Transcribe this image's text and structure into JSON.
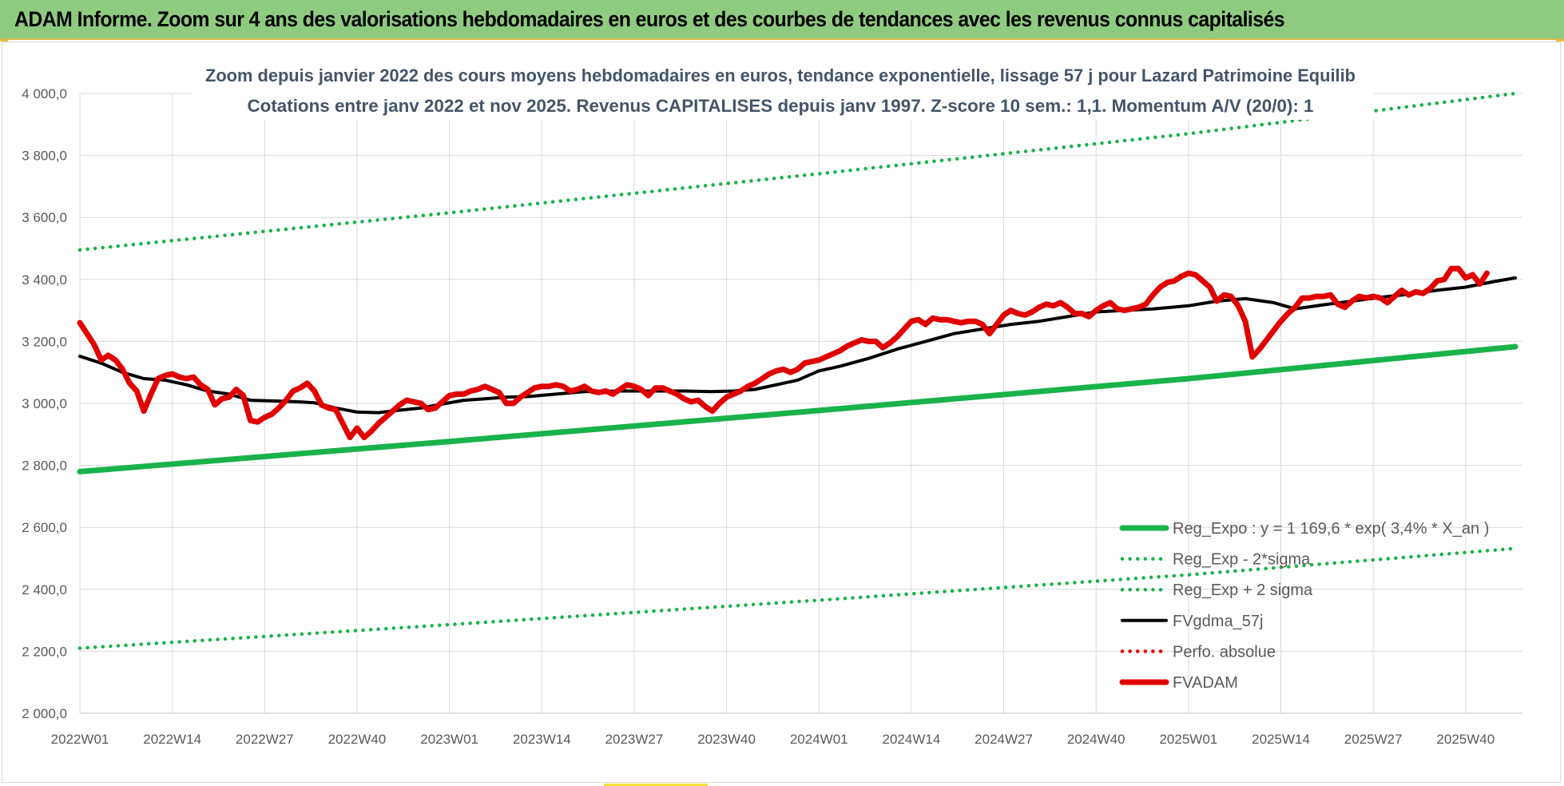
{
  "banner": {
    "title": "ADAM Informe. Zoom sur 4 ans des valorisations hebdomadaires en euros et des courbes de tendances avec les revenus connus capitalisés"
  },
  "colors": {
    "banner_bg": "#8fcb7f",
    "reg_expo": "#19b24b",
    "sigma_bands": "#19b24b",
    "moving_average": "#000000",
    "perfo_absolue": "#e00000",
    "fvadam": "#e00000"
  },
  "chart_data": {
    "type": "line",
    "title": "Zoom depuis janvier 2022 des cours moyens hebdomadaires en euros, tendance exponentielle, lissage 57 j pour Lazard Patrimoine Equilib",
    "subtitle": "Cotations entre janv 2022 et nov 2025. Revenus CAPITALISES depuis janv 1997. Z-score 10 sem.: 1,1. Momentum A/V (20/0): 1",
    "xlabel": "",
    "ylabel": "",
    "grid": true,
    "legend_position": "bottom-right",
    "ylim": [
      2000,
      4000
    ],
    "y_ticks": [
      "2 000,0",
      "2 200,0",
      "2 400,0",
      "2 600,0",
      "2 800,0",
      "3 000,0",
      "3 200,0",
      "3 400,0",
      "3 600,0",
      "3 800,0",
      "4 000,0"
    ],
    "x_ticks": [
      "2022W01",
      "2022W14",
      "2022W27",
      "2022W40",
      "2023W01",
      "2023W14",
      "2023W27",
      "2023W40",
      "2024W01",
      "2024W14",
      "2024W27",
      "2024W40",
      "2025W01",
      "2025W14",
      "2025W27",
      "2025W40"
    ],
    "series": [
      {
        "name": "Reg_Expo : y = 1 169,6 * exp( 3,4% *  X_an )",
        "style": "solid-thick",
        "color": "#19b24b",
        "points": [
          [
            "2022W01",
            2780
          ],
          [
            "2023W01",
            2877
          ],
          [
            "2024W01",
            2977
          ],
          [
            "2025W01",
            3080
          ],
          [
            "2025W47",
            3183
          ]
        ]
      },
      {
        "name": "Reg_Exp - 2*sigma",
        "style": "dotted",
        "color": "#19b24b",
        "points": [
          [
            "2022W01",
            2210
          ],
          [
            "2023W01",
            2286
          ],
          [
            "2024W01",
            2365
          ],
          [
            "2025W01",
            2447
          ],
          [
            "2025W47",
            2532
          ]
        ]
      },
      {
        "name": "Reg_Exp + 2 sigma",
        "style": "dotted",
        "color": "#19b24b",
        "points": [
          [
            "2022W01",
            3495
          ],
          [
            "2023W01",
            3615
          ],
          [
            "2024W01",
            3741
          ],
          [
            "2025W01",
            3870
          ],
          [
            "2025W47",
            4000
          ]
        ]
      },
      {
        "name": "FVgdma_57j",
        "style": "solid",
        "color": "#000000",
        "points": [
          [
            "2022W01",
            3152
          ],
          [
            "2022W04",
            3130
          ],
          [
            "2022W07",
            3100
          ],
          [
            "2022W10",
            3080
          ],
          [
            "2022W13",
            3075
          ],
          [
            "2022W16",
            3060
          ],
          [
            "2022W19",
            3040
          ],
          [
            "2022W22",
            3030
          ],
          [
            "2022W25",
            3010
          ],
          [
            "2022W28",
            3008
          ],
          [
            "2022W31",
            3006
          ],
          [
            "2022W34",
            3002
          ],
          [
            "2022W37",
            2985
          ],
          [
            "2022W40",
            2972
          ],
          [
            "2022W43",
            2970
          ],
          [
            "2022W46",
            2978
          ],
          [
            "2022W49",
            2985
          ],
          [
            "2022W52",
            2998
          ],
          [
            "2023W03",
            3010
          ],
          [
            "2023W06",
            3015
          ],
          [
            "2023W09",
            3020
          ],
          [
            "2023W12",
            3022
          ],
          [
            "2023W16",
            3030
          ],
          [
            "2023W20",
            3038
          ],
          [
            "2023W25",
            3040
          ],
          [
            "2023W30",
            3040
          ],
          [
            "2023W34",
            3040
          ],
          [
            "2023W38",
            3038
          ],
          [
            "2023W41",
            3040
          ],
          [
            "2023W44",
            3045
          ],
          [
            "2023W47",
            3060
          ],
          [
            "2023W50",
            3075
          ],
          [
            "2024W01",
            3105
          ],
          [
            "2024W04",
            3120
          ],
          [
            "2024W08",
            3145
          ],
          [
            "2024W12",
            3175
          ],
          [
            "2024W16",
            3200
          ],
          [
            "2024W20",
            3225
          ],
          [
            "2024W24",
            3240
          ],
          [
            "2024W28",
            3255
          ],
          [
            "2024W32",
            3265
          ],
          [
            "2024W36",
            3280
          ],
          [
            "2024W40",
            3295
          ],
          [
            "2024W44",
            3300
          ],
          [
            "2024W48",
            3305
          ],
          [
            "2025W01",
            3315
          ],
          [
            "2025W05",
            3330
          ],
          [
            "2025W09",
            3338
          ],
          [
            "2025W13",
            3325
          ],
          [
            "2025W16",
            3305
          ],
          [
            "2025W20",
            3318
          ],
          [
            "2025W24",
            3330
          ],
          [
            "2025W28",
            3342
          ],
          [
            "2025W32",
            3352
          ],
          [
            "2025W36",
            3365
          ],
          [
            "2025W40",
            3375
          ],
          [
            "2025W44",
            3393
          ],
          [
            "2025W47",
            3405
          ]
        ]
      },
      {
        "name": "Perfo. absolue",
        "style": "dotted",
        "color": "#e00000",
        "points": []
      },
      {
        "name": "FVADAM",
        "style": "solid-thick",
        "color": "#e00000",
        "points": [
          [
            "2022W01",
            3260
          ],
          [
            "2022W02",
            3225
          ],
          [
            "2022W03",
            3190
          ],
          [
            "2022W04",
            3140
          ],
          [
            "2022W05",
            3155
          ],
          [
            "2022W06",
            3140
          ],
          [
            "2022W07",
            3110
          ],
          [
            "2022W08",
            3065
          ],
          [
            "2022W09",
            3040
          ],
          [
            "2022W10",
            2975
          ],
          [
            "2022W11",
            3030
          ],
          [
            "2022W12",
            3080
          ],
          [
            "2022W13",
            3090
          ],
          [
            "2022W14",
            3095
          ],
          [
            "2022W15",
            3085
          ],
          [
            "2022W16",
            3080
          ],
          [
            "2022W17",
            3085
          ],
          [
            "2022W18",
            3060
          ],
          [
            "2022W19",
            3045
          ],
          [
            "2022W20",
            2995
          ],
          [
            "2022W21",
            3015
          ],
          [
            "2022W22",
            3020
          ],
          [
            "2022W23",
            3045
          ],
          [
            "2022W24",
            3025
          ],
          [
            "2022W25",
            2945
          ],
          [
            "2022W26",
            2940
          ],
          [
            "2022W27",
            2955
          ],
          [
            "2022W28",
            2965
          ],
          [
            "2022W29",
            2985
          ],
          [
            "2022W30",
            3010
          ],
          [
            "2022W31",
            3040
          ],
          [
            "2022W32",
            3050
          ],
          [
            "2022W33",
            3065
          ],
          [
            "2022W34",
            3040
          ],
          [
            "2022W35",
            2995
          ],
          [
            "2022W36",
            2985
          ],
          [
            "2022W37",
            2980
          ],
          [
            "2022W38",
            2935
          ],
          [
            "2022W39",
            2890
          ],
          [
            "2022W40",
            2920
          ],
          [
            "2022W41",
            2890
          ],
          [
            "2022W42",
            2910
          ],
          [
            "2022W43",
            2935
          ],
          [
            "2022W44",
            2955
          ],
          [
            "2022W45",
            2975
          ],
          [
            "2022W46",
            2995
          ],
          [
            "2022W47",
            3010
          ],
          [
            "2022W48",
            3005
          ],
          [
            "2022W49",
            3000
          ],
          [
            "2022W50",
            2980
          ],
          [
            "2022W51",
            2985
          ],
          [
            "2022W52",
            3005
          ],
          [
            "2023W01",
            3025
          ],
          [
            "2023W02",
            3030
          ],
          [
            "2023W03",
            3030
          ],
          [
            "2023W04",
            3040
          ],
          [
            "2023W05",
            3045
          ],
          [
            "2023W06",
            3055
          ],
          [
            "2023W07",
            3045
          ],
          [
            "2023W08",
            3035
          ],
          [
            "2023W09",
            3000
          ],
          [
            "2023W10",
            3000
          ],
          [
            "2023W11",
            3020
          ],
          [
            "2023W12",
            3035
          ],
          [
            "2023W13",
            3050
          ],
          [
            "2023W14",
            3055
          ],
          [
            "2023W15",
            3055
          ],
          [
            "2023W16",
            3060
          ],
          [
            "2023W17",
            3055
          ],
          [
            "2023W18",
            3040
          ],
          [
            "2023W19",
            3045
          ],
          [
            "2023W20",
            3055
          ],
          [
            "2023W21",
            3040
          ],
          [
            "2023W22",
            3035
          ],
          [
            "2023W23",
            3040
          ],
          [
            "2023W24",
            3030
          ],
          [
            "2023W25",
            3045
          ],
          [
            "2023W26",
            3060
          ],
          [
            "2023W27",
            3055
          ],
          [
            "2023W28",
            3045
          ],
          [
            "2023W29",
            3025
          ],
          [
            "2023W30",
            3050
          ],
          [
            "2023W31",
            3050
          ],
          [
            "2023W32",
            3040
          ],
          [
            "2023W33",
            3030
          ],
          [
            "2023W34",
            3015
          ],
          [
            "2023W35",
            3005
          ],
          [
            "2023W36",
            3010
          ],
          [
            "2023W37",
            2990
          ],
          [
            "2023W38",
            2975
          ],
          [
            "2023W39",
            3000
          ],
          [
            "2023W40",
            3020
          ],
          [
            "2023W41",
            3030
          ],
          [
            "2023W42",
            3040
          ],
          [
            "2023W43",
            3055
          ],
          [
            "2023W44",
            3065
          ],
          [
            "2023W45",
            3080
          ],
          [
            "2023W46",
            3095
          ],
          [
            "2023W47",
            3105
          ],
          [
            "2023W48",
            3110
          ],
          [
            "2023W49",
            3100
          ],
          [
            "2023W50",
            3110
          ],
          [
            "2023W51",
            3130
          ],
          [
            "2023W52",
            3135
          ],
          [
            "2024W01",
            3140
          ],
          [
            "2024W02",
            3150
          ],
          [
            "2024W03",
            3160
          ],
          [
            "2024W04",
            3170
          ],
          [
            "2024W05",
            3185
          ],
          [
            "2024W06",
            3195
          ],
          [
            "2024W07",
            3205
          ],
          [
            "2024W08",
            3200
          ],
          [
            "2024W09",
            3200
          ],
          [
            "2024W10",
            3180
          ],
          [
            "2024W11",
            3195
          ],
          [
            "2024W12",
            3215
          ],
          [
            "2024W13",
            3240
          ],
          [
            "2024W14",
            3265
          ],
          [
            "2024W15",
            3270
          ],
          [
            "2024W16",
            3255
          ],
          [
            "2024W17",
            3275
          ],
          [
            "2024W18",
            3270
          ],
          [
            "2024W19",
            3270
          ],
          [
            "2024W20",
            3265
          ],
          [
            "2024W21",
            3260
          ],
          [
            "2024W22",
            3265
          ],
          [
            "2024W23",
            3265
          ],
          [
            "2024W24",
            3255
          ],
          [
            "2024W25",
            3225
          ],
          [
            "2024W26",
            3255
          ],
          [
            "2024W27",
            3285
          ],
          [
            "2024W28",
            3300
          ],
          [
            "2024W29",
            3290
          ],
          [
            "2024W30",
            3285
          ],
          [
            "2024W31",
            3295
          ],
          [
            "2024W32",
            3310
          ],
          [
            "2024W33",
            3320
          ],
          [
            "2024W34",
            3315
          ],
          [
            "2024W35",
            3325
          ],
          [
            "2024W36",
            3310
          ],
          [
            "2024W37",
            3290
          ],
          [
            "2024W38",
            3290
          ],
          [
            "2024W39",
            3280
          ],
          [
            "2024W40",
            3300
          ],
          [
            "2024W41",
            3315
          ],
          [
            "2024W42",
            3325
          ],
          [
            "2024W43",
            3305
          ],
          [
            "2024W44",
            3300
          ],
          [
            "2024W45",
            3305
          ],
          [
            "2024W46",
            3310
          ],
          [
            "2024W47",
            3320
          ],
          [
            "2024W48",
            3350
          ],
          [
            "2024W49",
            3375
          ],
          [
            "2024W50",
            3390
          ],
          [
            "2024W51",
            3395
          ],
          [
            "2024W52",
            3410
          ],
          [
            "2025W01",
            3420
          ],
          [
            "2025W02",
            3415
          ],
          [
            "2025W03",
            3395
          ],
          [
            "2025W04",
            3375
          ],
          [
            "2025W05",
            3330
          ],
          [
            "2025W06",
            3350
          ],
          [
            "2025W07",
            3345
          ],
          [
            "2025W08",
            3315
          ],
          [
            "2025W09",
            3265
          ],
          [
            "2025W10",
            3150
          ],
          [
            "2025W11",
            3175
          ],
          [
            "2025W12",
            3205
          ],
          [
            "2025W13",
            3235
          ],
          [
            "2025W14",
            3265
          ],
          [
            "2025W15",
            3290
          ],
          [
            "2025W16",
            3310
          ],
          [
            "2025W17",
            3340
          ],
          [
            "2025W18",
            3340
          ],
          [
            "2025W19",
            3345
          ],
          [
            "2025W20",
            3345
          ],
          [
            "2025W21",
            3350
          ],
          [
            "2025W22",
            3320
          ],
          [
            "2025W23",
            3310
          ],
          [
            "2025W24",
            3330
          ],
          [
            "2025W25",
            3345
          ],
          [
            "2025W26",
            3340
          ],
          [
            "2025W27",
            3345
          ],
          [
            "2025W28",
            3340
          ],
          [
            "2025W29",
            3325
          ],
          [
            "2025W30",
            3345
          ],
          [
            "2025W31",
            3365
          ],
          [
            "2025W32",
            3350
          ],
          [
            "2025W33",
            3360
          ],
          [
            "2025W34",
            3355
          ],
          [
            "2025W35",
            3370
          ],
          [
            "2025W36",
            3395
          ],
          [
            "2025W37",
            3400
          ],
          [
            "2025W38",
            3435
          ],
          [
            "2025W39",
            3435
          ],
          [
            "2025W40",
            3405
          ],
          [
            "2025W41",
            3415
          ],
          [
            "2025W42",
            3385
          ],
          [
            "2025W43",
            3420
          ]
        ]
      }
    ]
  }
}
